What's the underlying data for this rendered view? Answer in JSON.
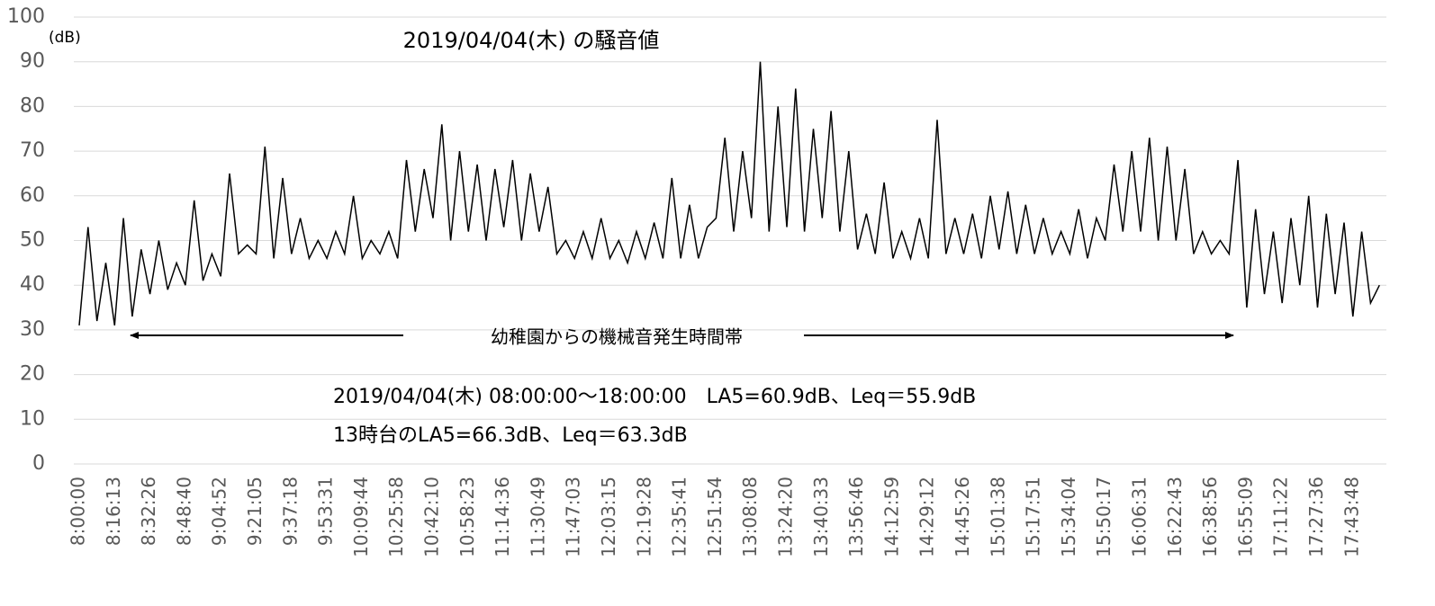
{
  "chart_data": {
    "type": "line",
    "title": "2019/04/04(木) の騒音値",
    "y_unit": "(dB)",
    "annotations": [
      "幼稚園からの機械音発生時間帯",
      "2019/04/04(木) 08:00:00～18:00:00　LA5=60.9dB、Leq＝55.9dB",
      "13時台のLA5=66.3dB、Leq＝63.3dB"
    ],
    "color": "#000000",
    "grid": true,
    "ylim": [
      0,
      100
    ],
    "yticks": [
      0,
      10,
      20,
      30,
      40,
      50,
      60,
      70,
      80,
      90,
      100
    ],
    "categories": [
      "8:00:00",
      null,
      null,
      null,
      "8:16:13",
      null,
      null,
      null,
      "8:32:26",
      null,
      null,
      null,
      "8:48:40",
      null,
      null,
      null,
      "9:04:52",
      null,
      null,
      null,
      "9:21:05",
      null,
      null,
      null,
      "9:37:18",
      null,
      null,
      null,
      "9:53:31",
      null,
      null,
      null,
      "10:09:44",
      null,
      null,
      null,
      "10:25:58",
      null,
      null,
      null,
      "10:42:10",
      null,
      null,
      null,
      "10:58:23",
      null,
      null,
      null,
      "11:14:36",
      null,
      null,
      null,
      "11:30:49",
      null,
      null,
      null,
      "11:47:03",
      null,
      null,
      null,
      "12:03:15",
      null,
      null,
      null,
      "12:19:28",
      null,
      null,
      null,
      "12:35:41",
      null,
      null,
      null,
      "12:51:54",
      null,
      null,
      null,
      "13:08:08",
      null,
      null,
      null,
      "13:24:20",
      null,
      null,
      null,
      "13:40:33",
      null,
      null,
      null,
      "13:56:46",
      null,
      null,
      null,
      "14:12:59",
      null,
      null,
      null,
      "14:29:12",
      null,
      null,
      null,
      "14:45:26",
      null,
      null,
      null,
      "15:01:38",
      null,
      null,
      null,
      "15:17:51",
      null,
      null,
      null,
      "15:34:04",
      null,
      null,
      null,
      "15:50:17",
      null,
      null,
      null,
      "16:06:31",
      null,
      null,
      null,
      "16:22:43",
      null,
      null,
      null,
      "16:38:56",
      null,
      null,
      null,
      "16:55:09",
      null,
      null,
      null,
      "17:11:22",
      null,
      null,
      null,
      "17:27:36",
      null,
      null,
      null,
      "17:43:48",
      null,
      null,
      null
    ],
    "values": [
      31,
      53,
      32,
      45,
      31,
      55,
      33,
      48,
      38,
      50,
      39,
      45,
      40,
      59,
      41,
      47,
      42,
      65,
      47,
      49,
      47,
      71,
      46,
      64,
      47,
      55,
      46,
      50,
      46,
      52,
      47,
      60,
      46,
      50,
      47,
      52,
      46,
      68,
      52,
      66,
      55,
      76,
      50,
      70,
      52,
      67,
      50,
      66,
      53,
      68,
      50,
      65,
      52,
      62,
      47,
      50,
      46,
      52,
      46,
      55,
      46,
      50,
      45,
      52,
      46,
      54,
      46,
      64,
      46,
      58,
      46,
      53,
      55,
      73,
      52,
      70,
      55,
      90,
      52,
      80,
      53,
      84,
      52,
      75,
      55,
      79,
      52,
      70,
      48,
      56,
      47,
      63,
      46,
      52,
      46,
      55,
      46,
      77,
      47,
      55,
      47,
      56,
      46,
      60,
      48,
      61,
      47,
      58,
      47,
      55,
      47,
      52,
      47,
      57,
      46,
      55,
      50,
      67,
      52,
      70,
      52,
      73,
      50,
      71,
      50,
      66,
      47,
      52,
      47,
      50,
      47,
      68,
      35,
      57,
      38,
      52,
      36,
      55,
      40,
      60,
      35,
      56,
      38,
      54,
      33,
      52,
      36,
      40
    ]
  }
}
